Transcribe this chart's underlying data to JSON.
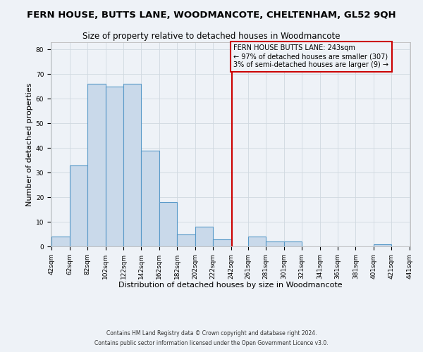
{
  "title": "FERN HOUSE, BUTTS LANE, WOODMANCOTE, CHELTENHAM, GL52 9QH",
  "subtitle": "Size of property relative to detached houses in Woodmancote",
  "xlabel": "Distribution of detached houses by size in Woodmancote",
  "ylabel": "Number of detached properties",
  "bar_edges": [
    42,
    62,
    82,
    102,
    122,
    142,
    162,
    182,
    202,
    222,
    242,
    261,
    281,
    301,
    321,
    341,
    361,
    381,
    401,
    421,
    441
  ],
  "bar_heights": [
    4,
    33,
    66,
    65,
    66,
    39,
    18,
    5,
    8,
    3,
    0,
    4,
    2,
    2,
    0,
    0,
    0,
    0,
    1,
    0
  ],
  "bar_color": "#c9d9ea",
  "bar_edge_color": "#5899c8",
  "vline_x": 243,
  "vline_color": "#cc0000",
  "annotation_title": "FERN HOUSE BUTTS LANE: 243sqm",
  "annotation_line1": "← 97% of detached houses are smaller (307)",
  "annotation_line2": "3% of semi-detached houses are larger (9) →",
  "annotation_box_color": "#cc0000",
  "ylim": [
    0,
    83
  ],
  "tick_labels": [
    "42sqm",
    "62sqm",
    "82sqm",
    "102sqm",
    "122sqm",
    "142sqm",
    "162sqm",
    "182sqm",
    "202sqm",
    "222sqm",
    "242sqm",
    "261sqm",
    "281sqm",
    "301sqm",
    "321sqm",
    "341sqm",
    "361sqm",
    "381sqm",
    "401sqm",
    "421sqm",
    "441sqm"
  ],
  "footnote1": "Contains HM Land Registry data © Crown copyright and database right 2024.",
  "footnote2": "Contains public sector information licensed under the Open Government Licence v3.0.",
  "background_color": "#eef2f7",
  "grid_color": "#d0d8e0",
  "title_fontsize": 9.5,
  "subtitle_fontsize": 8.5,
  "axis_label_fontsize": 8,
  "tick_fontsize": 6.5,
  "footnote_fontsize": 5.5,
  "yticks": [
    0,
    10,
    20,
    30,
    40,
    50,
    60,
    70,
    80
  ]
}
